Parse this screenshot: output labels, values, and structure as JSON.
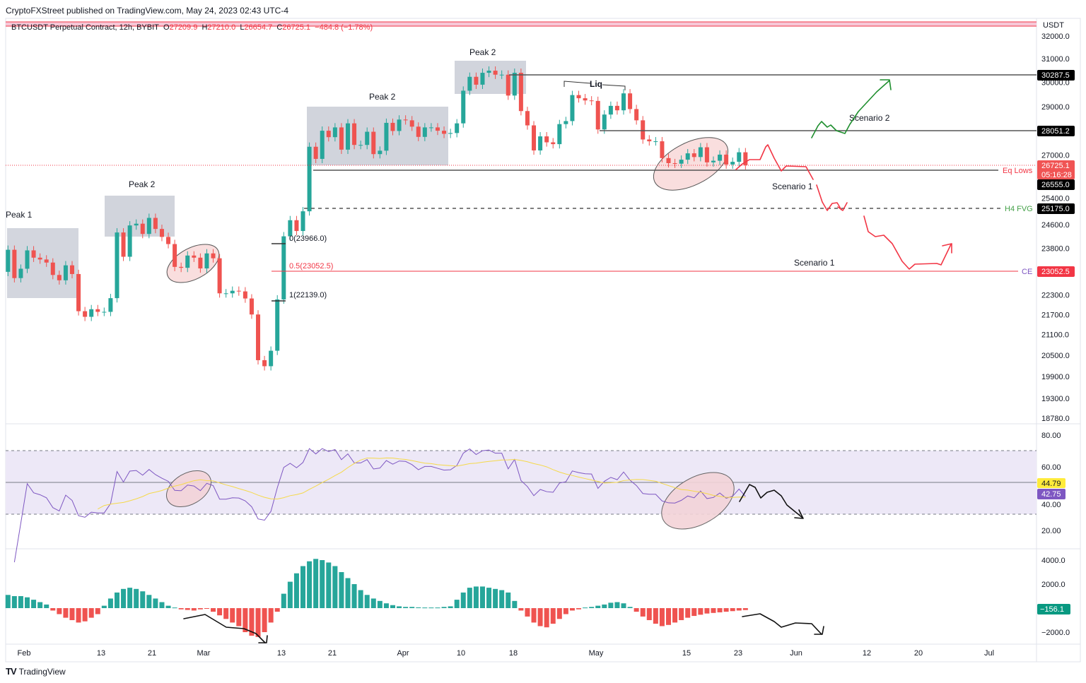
{
  "header": {
    "published": "CryptoFXStreet published on TradingView.com, May 24, 2023 02:43 UTC-4",
    "symbol": "BTCUSDT Perpetual Contract, 12h, BYBIT",
    "o_label": "O",
    "o": "27209.9",
    "h_label": "H",
    "h": "27210.0",
    "l_label": "L",
    "l": "26654.7",
    "c_label": "C",
    "c": "26725.1",
    "change": "−484.8 (−1.78%)"
  },
  "colors": {
    "up": "#26a69a",
    "down": "#ef5350",
    "rsi": "#7e57c2",
    "rsi_ma": "#f5d94a",
    "scenario1": "#f23645",
    "scenario2": "#1e8e2e"
  },
  "axis": {
    "currency": "USDT",
    "price_ticks": [
      "32000.0",
      "31000.0",
      "30000.0",
      "29000.0",
      "27000.0",
      "25400.0",
      "24600.0",
      "23800.0",
      "22300.0",
      "21700.0",
      "21100.0",
      "20500.0",
      "19900.0",
      "19300.0",
      "18780.0"
    ],
    "rsi_ticks": [
      "80.00",
      "60.00",
      "40.00",
      "20.00"
    ],
    "macd_ticks": [
      "4000.0",
      "2000.0",
      "−2000.0"
    ],
    "time_ticks": [
      "Feb",
      "13",
      "21",
      "Mar",
      "13",
      "21",
      "Apr",
      "10",
      "18",
      "May",
      "15",
      "23",
      "Jun",
      "12",
      "20",
      "Jul"
    ]
  },
  "price_labels": {
    "level_1": "30287.5",
    "level_2": "28051.2",
    "last_price": "26725.1",
    "countdown": "05:16:28",
    "eq_lows": "26555.0",
    "h4_fvg": "25175.0",
    "ce": "23052.5"
  },
  "annotations": {
    "peak1": "Peak 1",
    "peak2_a": "Peak 2",
    "peak2_b": "Peak 2",
    "peak2_c": "Peak 2",
    "liq": "Liq",
    "eq_lows": "Eq Lows",
    "h4_fvg": "H4 FVG",
    "ce": "CE",
    "fib_0": "0(23966.0)",
    "fib_05": "0.5(23052.5)",
    "fib_1": "1(22139.0)",
    "scenario2": "Scenario 2",
    "scenario1_a": "Scenario 1",
    "scenario1_b": "Scenario 1"
  },
  "indicators": {
    "rsi_ma_value": "44.79",
    "rsi_value": "42.75",
    "macd_value": "−156.1"
  },
  "footer": {
    "brand": "TradingView"
  },
  "chart_data": {
    "type": "candlestick",
    "timeframe": "12h",
    "start_date": "2023-01-29",
    "scale": "log",
    "ylim": [
      18780,
      32300
    ],
    "first_open": 23030,
    "daily_closes": [
      23750,
      22830,
      23130,
      23730,
      23490,
      23430,
      23330,
      22930,
      22760,
      23240,
      22960,
      21800,
      21630,
      21860,
      21780,
      21780,
      22200,
      24330,
      23520,
      24570,
      24630,
      24280,
      24830,
      24450,
      24180,
      23940,
      23190,
      23160,
      23560,
      23490,
      23140,
      23630,
      23470,
      22350,
      22350,
      22430,
      22410,
      22190,
      21700,
      20360,
      20190,
      20630,
      22160,
      24200,
      24750,
      24380,
      25060,
      27420,
      26960,
      28040,
      27790,
      28170,
      27310,
      28330,
      27490,
      27490,
      28000,
      27140,
      27270,
      28350,
      28030,
      28480,
      28450,
      28200,
      27800,
      28170,
      28170,
      28040,
      27920,
      27950,
      28330,
      29650,
      30230,
      29900,
      30400,
      30490,
      30320,
      30320,
      29450,
      30400,
      28820,
      28250,
      27280,
      27820,
      27590,
      27520,
      28300,
      28420,
      29470,
      29340,
      29250,
      29230,
      28090,
      28680,
      29030,
      28850,
      29540,
      28900,
      28450,
      27700,
      27630,
      27630,
      26990,
      26800,
      26780,
      26930,
      27170,
      27030,
      27400,
      26830,
      26890,
      27120,
      26750,
      26850,
      27210,
      26725
    ],
    "macd_histogram": [
      1100,
      1000,
      1000,
      900,
      700,
      500,
      300,
      -200,
      -500,
      -800,
      -1000,
      -1200,
      -1100,
      -800,
      -500,
      200,
      800,
      1300,
      1600,
      1700,
      1600,
      1400,
      1100,
      800,
      500,
      200,
      50,
      -100,
      -150,
      -200,
      -100,
      -50,
      -300,
      -600,
      -900,
      -1200,
      -1500,
      -2000,
      -2300,
      -2400,
      -2000,
      -1200,
      -300,
      1200,
      2200,
      2900,
      3500,
      3900,
      4100,
      4000,
      3800,
      3500,
      3000,
      2500,
      2000,
      1500,
      1100,
      800,
      600,
      400,
      250,
      150,
      100,
      100,
      60,
      50,
      50,
      50,
      100,
      150,
      700,
      1300,
      1700,
      1800,
      1800,
      1700,
      1600,
      1500,
      1300,
      600,
      -200,
      -700,
      -1200,
      -1500,
      -1600,
      -1300,
      -900,
      -500,
      -200,
      -100,
      50,
      100,
      200,
      300,
      450,
      500,
      400,
      100,
      -300,
      -700,
      -1000,
      -1300,
      -1500,
      -1400,
      -1200,
      -1000,
      -800,
      -650,
      -550,
      -450,
      -400,
      -350,
      -300,
      -250,
      -200,
      -160
    ],
    "rsi_period": 14,
    "rsi_ma_period": 14,
    "rsi_bands": [
      70,
      50,
      30
    ],
    "levels": {
      "liquidity_high": 30287.5,
      "range_level": 28051.2,
      "eq_lows": 26555.0,
      "h4_fvg": 25175.0,
      "ce": 23052.5,
      "fib_0": 23966.0,
      "fib_1": 22139.0
    }
  }
}
